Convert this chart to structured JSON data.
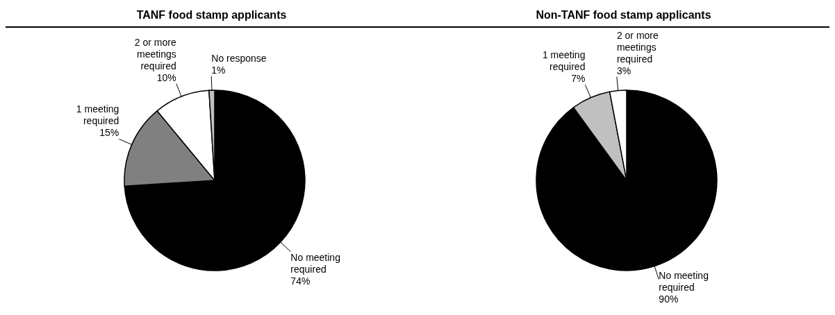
{
  "chart_data": [
    {
      "type": "pie",
      "title": "TANF food stamp applicants",
      "categories": [
        "No meeting required",
        "1 meeting required",
        "2 or more meetings required",
        "No response"
      ],
      "values": [
        74,
        15,
        10,
        1
      ],
      "colors": [
        "#000000",
        "#808080",
        "#ffffff",
        "#c0c0c0"
      ],
      "value_labels": [
        "74%",
        "15%",
        "10%",
        "1%"
      ]
    },
    {
      "type": "pie",
      "title": "Non-TANF food stamp applicants",
      "categories": [
        "No meeting required",
        "1 meeting required",
        "2 or more meetings required"
      ],
      "values": [
        90,
        7,
        3
      ],
      "colors": [
        "#000000",
        "#c0c0c0",
        "#ffffff"
      ],
      "value_labels": [
        "90%",
        "7%",
        "3%"
      ]
    }
  ]
}
